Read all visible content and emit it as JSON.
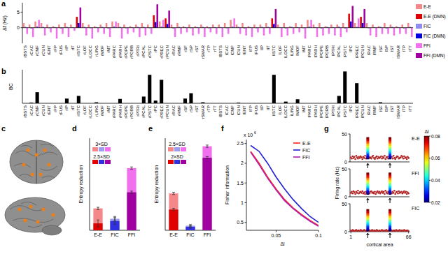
{
  "chart_data": [
    {
      "panel": "a",
      "type": "bar",
      "y_label": "Δf (Hz)",
      "categories": [
        "rBSTS",
        "rCAC",
        "rCMF",
        "rCUN",
        "rENT",
        "rFP",
        "rFUS",
        "rIP",
        "rIT",
        "rISTC",
        "rLOF",
        "rLOCC",
        "rLING",
        "rMOF",
        "rMT",
        "rPARC",
        "rPARH",
        "rPOPE",
        "rPORB",
        "rPTRI",
        "rPCAL",
        "rPSTC",
        "rPC",
        "rPREC",
        "rPCUN",
        "rRAC",
        "rRMF",
        "rSF",
        "rSP",
        "rST",
        "rSMAR",
        "rTP",
        "rTT",
        "lBSTS",
        "lCAC",
        "lCMF",
        "lCUN",
        "lENT",
        "lFP",
        "lFUS",
        "lIP",
        "lIT",
        "lISTC",
        "lLOF",
        "lLOCC",
        "lLING",
        "lMOF",
        "lMT",
        "lPARC",
        "lPARH",
        "lPOPE",
        "lPORB",
        "lPTRI",
        "lPCAL",
        "lPSTC",
        "lPC",
        "lPREC",
        "lPCUN",
        "lRAC",
        "lRMF",
        "lSF",
        "lSP",
        "lST",
        "lSMAR",
        "lTP",
        "lTT"
      ],
      "ylim": [
        -5,
        8
      ],
      "yticks": [
        0,
        5
      ],
      "legend": "right",
      "series": [
        {
          "name": "E-E",
          "color": "#f4878a",
          "values": [
            1.5,
            1,
            2,
            1.5,
            1,
            0.5,
            1,
            1.5,
            1,
            null,
            1.5,
            1,
            0.5,
            1,
            1.5,
            2,
            1.5,
            1,
            0.5,
            1,
            1.5,
            1,
            null,
            2,
            null,
            1,
            1.5,
            0.5,
            1,
            0.5,
            1,
            0.5,
            1,
            1,
            1.5,
            2.5,
            1,
            1.5,
            0.5,
            1,
            1,
            1.5,
            null,
            1,
            1.5,
            0.5,
            1.5,
            1,
            2.5,
            1,
            1.5,
            0.5,
            1,
            1,
            1.5,
            null,
            1.5,
            null,
            1.5,
            1,
            0.5,
            1.5,
            1,
            0.5,
            1,
            1.5
          ]
        },
        {
          "name": "E-E (DMN)",
          "color": "#e00000",
          "values": [
            null,
            null,
            null,
            null,
            null,
            null,
            null,
            null,
            null,
            3.5,
            null,
            null,
            null,
            null,
            null,
            null,
            null,
            null,
            null,
            null,
            null,
            null,
            4,
            null,
            3,
            null,
            null,
            null,
            null,
            null,
            null,
            null,
            null,
            null,
            null,
            null,
            null,
            null,
            null,
            null,
            null,
            null,
            3,
            null,
            null,
            null,
            null,
            null,
            null,
            null,
            null,
            null,
            null,
            null,
            null,
            4.5,
            null,
            3.5,
            null,
            null,
            null,
            null,
            null,
            null,
            null,
            null
          ]
        },
        {
          "name": "FIC",
          "color": "#8c8cf2",
          "values": [
            0.3,
            -0.3,
            0.5,
            0.3,
            -0.2,
            0.2,
            -0.3,
            0.3,
            0.2,
            null,
            0.3,
            -0.2,
            0.2,
            0.3,
            -0.3,
            0.5,
            0.3,
            -0.2,
            0.2,
            0.3,
            0.3,
            -0.2,
            null,
            0.4,
            null,
            -0.3,
            0.3,
            0.2,
            -0.2,
            0.2,
            0.3,
            -0.2,
            0.2,
            0.2,
            -0.2,
            0.4,
            0.3,
            -0.3,
            0.2,
            -0.2,
            0.3,
            0.3,
            null,
            0.2,
            -0.3,
            0.3,
            0.2,
            -0.2,
            0.4,
            0.2,
            -0.3,
            0.3,
            0.2,
            0.4,
            -0.3,
            null,
            0.3,
            null,
            -0.2,
            0.2,
            0.3,
            -0.3,
            0.3,
            0.2,
            -0.3,
            0.3
          ]
        },
        {
          "name": "FIC (DMN)",
          "color": "#0000e0",
          "values": [
            null,
            null,
            null,
            null,
            null,
            null,
            null,
            null,
            null,
            1.5,
            null,
            null,
            null,
            null,
            null,
            null,
            null,
            null,
            null,
            null,
            null,
            null,
            1.8,
            null,
            1.2,
            null,
            null,
            null,
            null,
            null,
            null,
            null,
            null,
            null,
            null,
            null,
            null,
            null,
            null,
            null,
            null,
            null,
            1.2,
            null,
            null,
            null,
            null,
            null,
            null,
            null,
            null,
            null,
            null,
            null,
            null,
            2,
            null,
            1.5,
            null,
            null,
            null,
            null,
            null,
            null,
            null,
            null
          ]
        },
        {
          "name": "FFI",
          "color": "#f070ee",
          "values": [
            -2,
            -3,
            2.5,
            -2.5,
            -1.5,
            -3.5,
            -2,
            -3,
            -1,
            null,
            -2.5,
            -3.5,
            -1.5,
            -2,
            -3,
            2,
            -3.5,
            -2,
            -1.5,
            -3,
            -2.5,
            -2,
            null,
            2.5,
            null,
            -3,
            -2,
            -1.5,
            -2.5,
            -2,
            -3,
            -1.5,
            -2,
            -3,
            -2,
            3,
            -2,
            -2.5,
            -3,
            -1.5,
            -2.5,
            -2,
            null,
            -3,
            -2.5,
            -2,
            -1.5,
            -3.5,
            2.5,
            -3,
            -2.5,
            -2,
            -2.5,
            -3,
            -1.5,
            null,
            3,
            null,
            -2.5,
            -3,
            -2,
            -2,
            -2.5,
            -2,
            -2,
            -3
          ]
        },
        {
          "name": "FFI (DMN)",
          "color": "#a000a0",
          "values": [
            null,
            null,
            null,
            null,
            null,
            null,
            null,
            null,
            null,
            6.5,
            null,
            null,
            null,
            null,
            null,
            null,
            null,
            null,
            null,
            null,
            null,
            null,
            7.5,
            null,
            5.5,
            null,
            null,
            null,
            null,
            null,
            null,
            null,
            null,
            null,
            null,
            null,
            null,
            null,
            null,
            null,
            null,
            null,
            6,
            null,
            null,
            null,
            null,
            null,
            null,
            null,
            null,
            null,
            null,
            null,
            null,
            7,
            null,
            6,
            null,
            null,
            null,
            null,
            null,
            null,
            null,
            null
          ]
        }
      ]
    },
    {
      "panel": "b",
      "type": "bar",
      "y_label": "BC",
      "categories": [
        "rBSTS",
        "rCAC",
        "rCMF",
        "rCUN",
        "rENT",
        "rFP",
        "rFUS",
        "rIP",
        "rIT",
        "rISTC",
        "rLOF",
        "rLOCC",
        "rLING",
        "rMOF",
        "rMT",
        "rPARC",
        "rPARH",
        "rPOPE",
        "rPORB",
        "rPTRI",
        "rPCAL",
        "rPSTC",
        "rPC",
        "rPREC",
        "rPCUN",
        "rRAC",
        "rRMF",
        "rSF",
        "rSP",
        "rST",
        "rSMAR",
        "rTP",
        "rTT",
        "lBSTS",
        "lCAC",
        "lCMF",
        "lCUN",
        "lENT",
        "lFP",
        "lFUS",
        "lIP",
        "lIT",
        "lISTC",
        "lLOF",
        "lLOCC",
        "lLING",
        "lMOF",
        "lMT",
        "lPARC",
        "lPARH",
        "lPOPE",
        "lPORB",
        "lPTRI",
        "lPCAL",
        "lPSTC",
        "lPC",
        "lPREC",
        "lPCUN",
        "lRAC",
        "lRMF",
        "lSF",
        "lSP",
        "lST",
        "lSMAR",
        "lTP",
        "lTT"
      ],
      "values": [
        0,
        2,
        33,
        0,
        0,
        0,
        0,
        14,
        0,
        22,
        0,
        0,
        3,
        0,
        0,
        0,
        13,
        0,
        0,
        0,
        20,
        85,
        8,
        70,
        0,
        0,
        0,
        14,
        30,
        0,
        3,
        0,
        0,
        0,
        0,
        0,
        2,
        0,
        0,
        0,
        0,
        0,
        85,
        0,
        5,
        0,
        12,
        0,
        0,
        0,
        0,
        0,
        0,
        22,
        95,
        0,
        60,
        0,
        0,
        0,
        3,
        0,
        0,
        0,
        0,
        0
      ],
      "color": "#000000",
      "ylim": [
        0,
        100
      ],
      "tick_labels": "x"
    },
    {
      "panel": "d",
      "type": "bar",
      "y_label": "Entropy reduction",
      "categories": [
        "E-E",
        "FIC",
        "FFI"
      ],
      "ylim": [
        0,
        0.8
      ],
      "tick_labels": "x",
      "series": [
        {
          "name": "3×SD",
          "colors": [
            "#f4878a",
            "#9c9cf2",
            "#f070ee"
          ],
          "values": [
            0.19,
            0.1,
            0.54
          ],
          "errors": [
            0.01,
            0.02,
            0.01
          ]
        },
        {
          "name": "2.5×SD",
          "colors": [
            "#e00000",
            "#3030e0",
            "#a000a0"
          ],
          "values": [
            0.06,
            0.08,
            0.33
          ],
          "errors": [
            0.03,
            0.03,
            0.01
          ]
        }
      ]
    },
    {
      "panel": "e",
      "type": "bar",
      "y_label": "Entropy reduction",
      "categories": [
        "E-E",
        "FIC",
        "FFI"
      ],
      "ylim": [
        0,
        0.8
      ],
      "tick_labels": "x",
      "series": [
        {
          "name": "2.5×SD",
          "colors": [
            "#f4878a",
            "#9c9cf2",
            "#f070ee"
          ],
          "values": [
            0.32,
            0.04,
            0.73
          ],
          "errors": [
            0.01,
            0.01,
            0.01
          ]
        },
        {
          "name": "2×SD",
          "colors": [
            "#e00000",
            "#3030e0",
            "#a000a0"
          ],
          "values": [
            0.18,
            0.03,
            0.63
          ],
          "errors": [
            0.01,
            0.01,
            0.01
          ]
        }
      ]
    },
    {
      "panel": "f",
      "type": "line",
      "y_label": "Fisher information",
      "x_label": "Δl",
      "y_multiplier": "x 10",
      "y_multiplier_exp": "6",
      "x": [
        0.02,
        0.03,
        0.04,
        0.05,
        0.06,
        0.07,
        0.08,
        0.09,
        0.1
      ],
      "xlim": [
        0.015,
        0.1
      ],
      "xticks": [
        0.05,
        0.1
      ],
      "ylim": [
        0.3,
        2.6
      ],
      "yticks": [
        0.5,
        1,
        1.5,
        2,
        2.5
      ],
      "legend": "top-right",
      "series": [
        {
          "name": "E-E",
          "color": "#ff2020",
          "values": [
            2.3,
            2,
            1.65,
            1.35,
            1.08,
            0.87,
            0.7,
            0.55,
            0.42
          ]
        },
        {
          "name": "FIC",
          "color": "#2020d0",
          "values": [
            2.45,
            2.3,
            2,
            1.65,
            1.35,
            1.08,
            0.85,
            0.65,
            0.5
          ]
        },
        {
          "name": "FFI",
          "color": "#b020b0",
          "values": [
            2.28,
            1.96,
            1.62,
            1.32,
            1.05,
            0.85,
            0.68,
            0.53,
            0.4
          ]
        }
      ]
    },
    {
      "panel": "g",
      "type": "scatter",
      "y_label": "Firing rate (Hz)",
      "x_label": "cortical area",
      "x": [
        1,
        2,
        3,
        4,
        5,
        6,
        7,
        8,
        9,
        10,
        11,
        12,
        13,
        14,
        15,
        16,
        17,
        18,
        19,
        20,
        21,
        22,
        23,
        24,
        25,
        26,
        27,
        28,
        29,
        30,
        31,
        32,
        33,
        34,
        35,
        36,
        37,
        38,
        39,
        40,
        41,
        42,
        43,
        44,
        45,
        46,
        47,
        48,
        49,
        50,
        51,
        52,
        53,
        54,
        55,
        56,
        57,
        58,
        59,
        60,
        61,
        62,
        63,
        64,
        65,
        66
      ],
      "xlim": [
        0,
        67
      ],
      "xticks": [
        1,
        66
      ],
      "ylim": [
        0,
        50
      ],
      "yticks": [
        0,
        50
      ],
      "color": "#b22222",
      "marker": "circle",
      "stim_areas": [
        20,
        45
      ],
      "stim_dl": [
        0.02,
        0.025,
        0.03,
        0.035,
        0.04,
        0.045,
        0.05,
        0.055,
        0.06,
        0.065,
        0.07,
        0.075,
        0.08
      ],
      "rows": [
        {
          "name": "E-E",
          "values": [
            8,
            6,
            10,
            7,
            9,
            5,
            11,
            8,
            6,
            9,
            7,
            10,
            8,
            5,
            9,
            7,
            11,
            6,
            8,
            9,
            10,
            7,
            8,
            6,
            9,
            11,
            7,
            5,
            8,
            10,
            6,
            9,
            7,
            8,
            10,
            6,
            9,
            7,
            11,
            5,
            8,
            9,
            6,
            10,
            7,
            8,
            9,
            6,
            11,
            7,
            5,
            8,
            10,
            9,
            6,
            7,
            8,
            11,
            9,
            6,
            10,
            7,
            8,
            5,
            9,
            7
          ],
          "stim_rates": [
            8,
            11,
            14,
            17,
            20,
            23,
            26,
            29,
            32,
            35,
            38,
            41,
            44
          ]
        },
        {
          "name": "FFI",
          "values": [
            7,
            9,
            6,
            10,
            8,
            5,
            9,
            7,
            11,
            6,
            8,
            9,
            7,
            10,
            6,
            8,
            5,
            9,
            7,
            11,
            8,
            6,
            9,
            10,
            7,
            8,
            6,
            9,
            5,
            8,
            10,
            7,
            9,
            6,
            8,
            10,
            7,
            9,
            5,
            11,
            8,
            6,
            9,
            7,
            10,
            8,
            6,
            9,
            7,
            11,
            5,
            8,
            9,
            6,
            10,
            7,
            8,
            9,
            6,
            8,
            10,
            7,
            9,
            5,
            8,
            6
          ],
          "stim_rates": [
            7,
            10,
            13,
            16,
            19,
            22,
            25,
            28,
            31,
            34,
            37,
            40,
            43
          ]
        },
        {
          "name": "FIC",
          "values": [
            2,
            1,
            3,
            2,
            1,
            2,
            3,
            1,
            2,
            2,
            1,
            3,
            2,
            1,
            2,
            3,
            2,
            1,
            2,
            1,
            3,
            2,
            1,
            2,
            3,
            1,
            2,
            2,
            1,
            3,
            2,
            1,
            2,
            1,
            2,
            3,
            2,
            1,
            2,
            2,
            3,
            1,
            2,
            1,
            2,
            3,
            2,
            1,
            2,
            2,
            1,
            3,
            2,
            1,
            2,
            3,
            1,
            2,
            2,
            1,
            3,
            2,
            1,
            2,
            2,
            1
          ],
          "stim_rates": [
            4,
            7,
            10,
            13,
            16,
            19,
            22,
            25,
            28,
            31,
            34,
            37,
            40
          ]
        }
      ],
      "colorbar": {
        "label": "Δl",
        "range": [
          0.02,
          0.08
        ],
        "ticks": [
          0.02,
          0.04,
          0.06,
          0.08
        ]
      }
    }
  ],
  "panel_c": {
    "panel": "c"
  }
}
